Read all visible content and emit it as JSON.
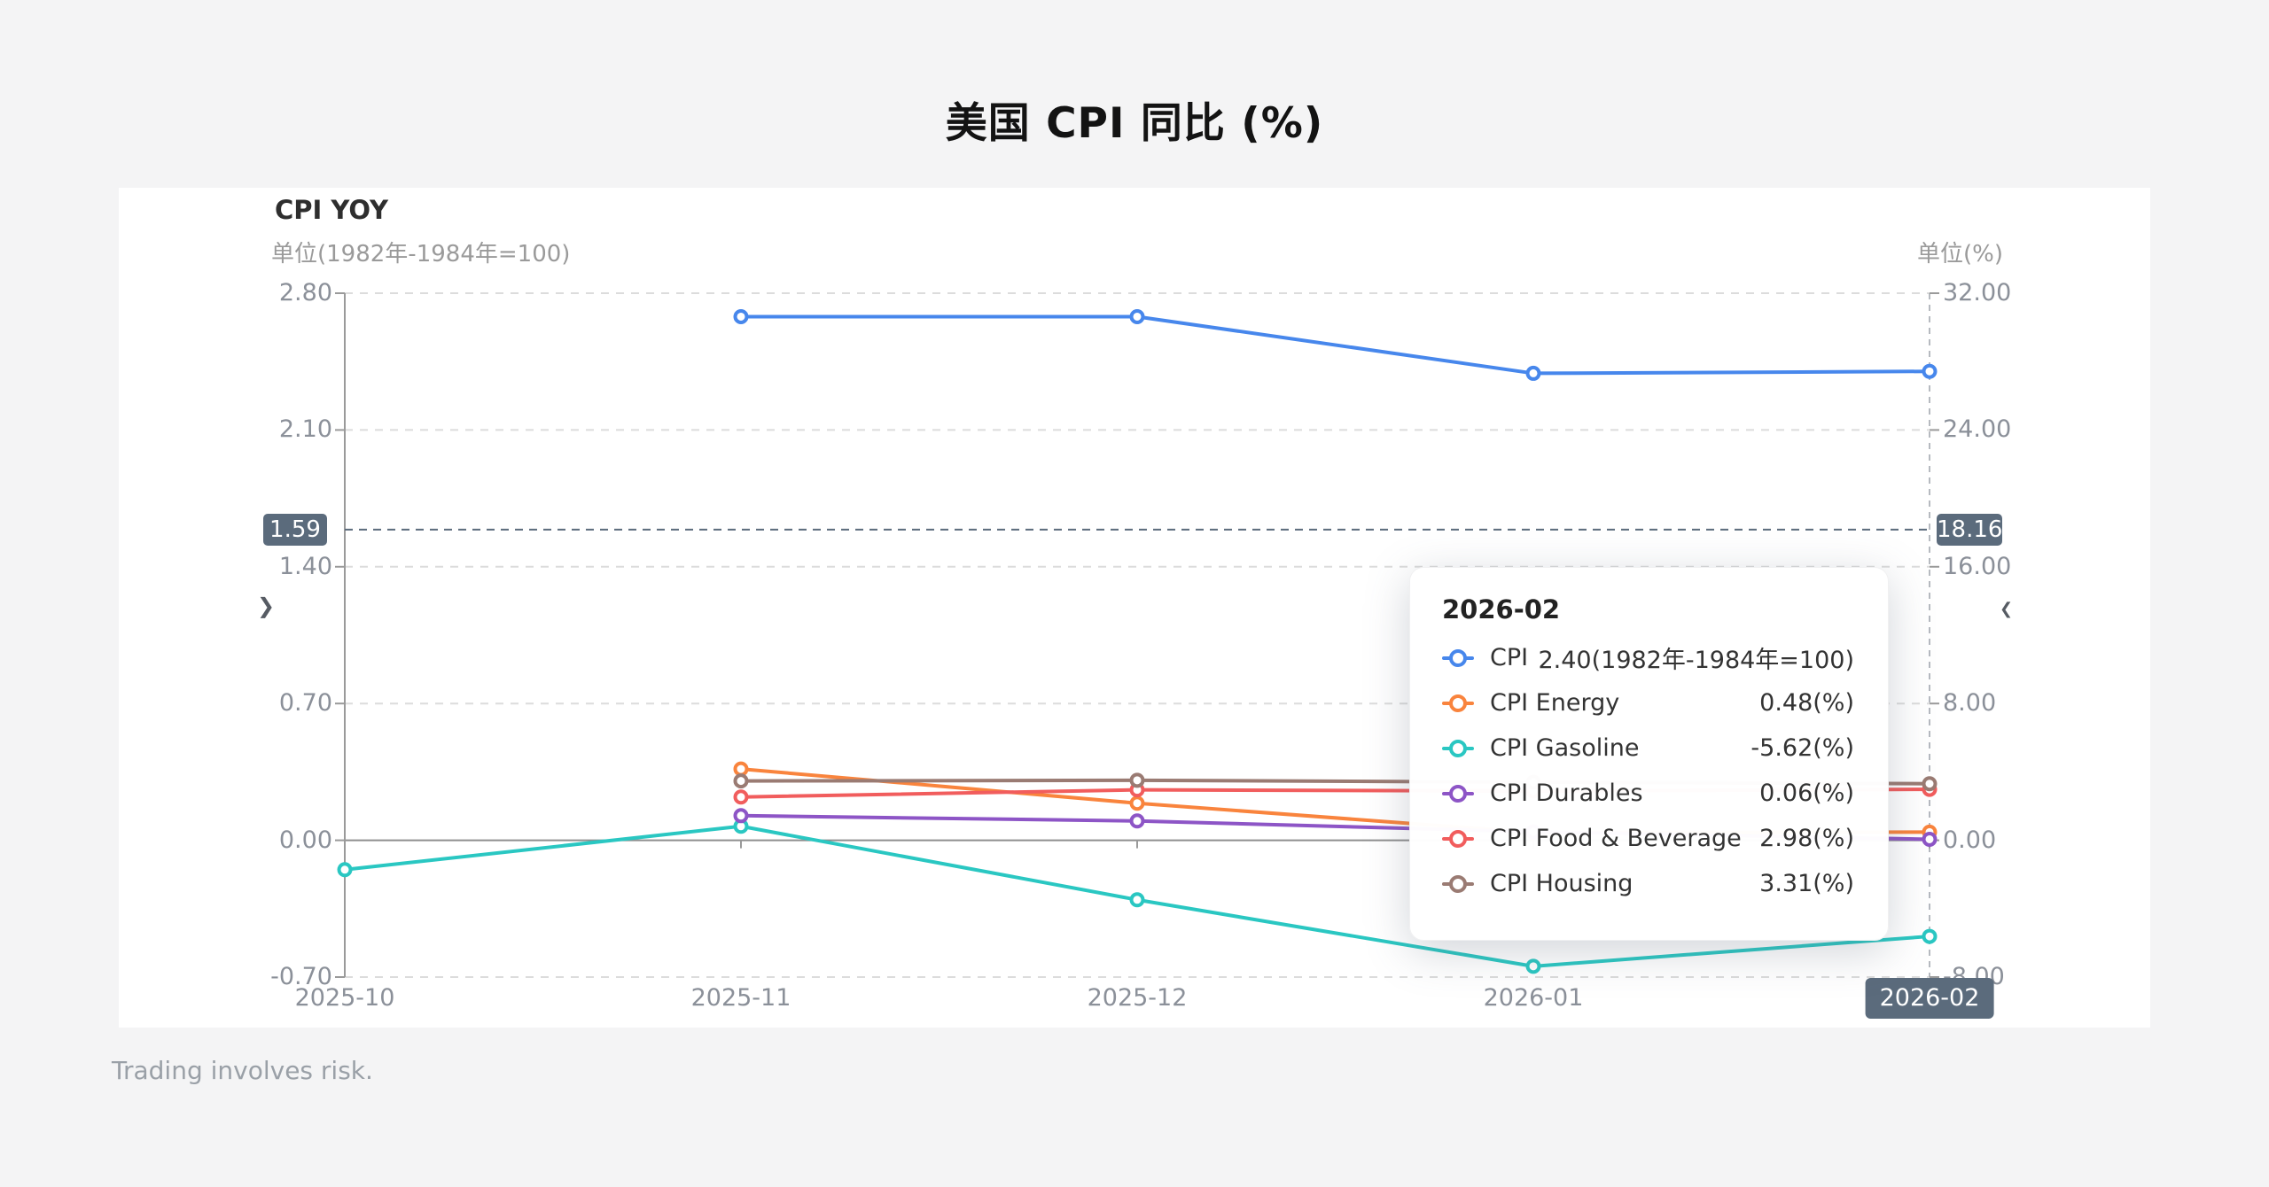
{
  "page": {
    "title": "美国 CPI 同比 (%)",
    "footer": "Trading involves risk."
  },
  "chart": {
    "heading": "CPI YOY",
    "left_axis_unit": "单位(1982年-1984年=100)",
    "right_axis_unit": "单位(%)",
    "nav": {
      "left_chevron": "❯",
      "right_chevron": "❮"
    }
  },
  "chart_data": {
    "type": "line",
    "title": "CPI YOY",
    "x": [
      "2025-10",
      "2025-11",
      "2025-12",
      "2026-01",
      "2026-02"
    ],
    "left_axis": {
      "label": "单位(1982年-1984年=100)",
      "ticks": [
        "2.80",
        "2.10",
        "1.40",
        "0.70",
        "0.00",
        "-0.70"
      ],
      "min": -0.7,
      "max": 2.8,
      "zero_tick_index": 4
    },
    "right_axis": {
      "label": "单位(%)",
      "ticks": [
        "32.00",
        "24.00",
        "16.00",
        "8.00",
        "0.00",
        "-8.00"
      ],
      "min": -8,
      "max": 32
    },
    "grid": "dashed",
    "series": [
      {
        "name": "CPI",
        "color": "#4787ec",
        "axis": "left",
        "values": [
          null,
          2.68,
          2.68,
          2.39,
          2.4
        ]
      },
      {
        "name": "CPI Energy",
        "color": "#f9843d",
        "axis": "right",
        "values": [
          null,
          4.17,
          2.17,
          0.45,
          0.48
        ]
      },
      {
        "name": "CPI Gasoline",
        "color": "#2ac7c2",
        "axis": "right",
        "values": [
          -1.72,
          0.82,
          -3.48,
          -7.37,
          -5.62
        ]
      },
      {
        "name": "CPI Durables",
        "color": "#8d55c6",
        "axis": "right",
        "values": [
          null,
          1.44,
          1.13,
          0.5,
          0.06
        ]
      },
      {
        "name": "CPI Food & Beverage",
        "color": "#f15d5d",
        "axis": "right",
        "values": [
          null,
          2.53,
          2.95,
          2.88,
          2.98
        ]
      },
      {
        "name": "CPI Housing",
        "color": "#9a7b73",
        "axis": "right",
        "values": [
          null,
          3.47,
          3.51,
          3.4,
          3.31
        ]
      }
    ],
    "pointer": {
      "left_badge": "1.59",
      "right_badge": "18.16",
      "left_value": 1.59,
      "x_badge": "2026-02",
      "badge_color": "#5b6b7c"
    }
  },
  "tooltip": {
    "header": "2026-02",
    "rows": [
      {
        "label": "CPI",
        "value": "2.40(1982年-1984年=100)"
      },
      {
        "label": "CPI Energy",
        "value": "0.48(%)"
      },
      {
        "label": "CPI Gasoline",
        "value": "-5.62(%)"
      },
      {
        "label": "CPI Durables",
        "value": "0.06(%)"
      },
      {
        "label": "CPI Food & Beverage",
        "value": "2.98(%)"
      },
      {
        "label": "CPI Housing",
        "value": "3.31(%)"
      }
    ]
  }
}
